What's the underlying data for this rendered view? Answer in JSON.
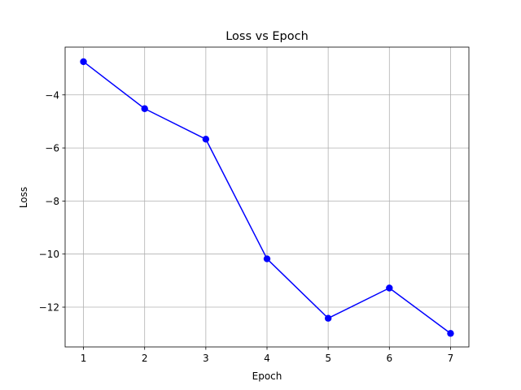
{
  "chart_data": {
    "type": "line",
    "title": "Loss vs Epoch",
    "xlabel": "Epoch",
    "ylabel": "Loss",
    "xlim": [
      0.7,
      7.3
    ],
    "ylim": [
      -13.5,
      -2.2
    ],
    "x_ticks": [
      1,
      2,
      3,
      4,
      5,
      6,
      7
    ],
    "y_ticks": [
      -12,
      -10,
      -8,
      -6,
      -4
    ],
    "grid": true,
    "series": [
      {
        "x": [
          1,
          2,
          3,
          4,
          5,
          6,
          7
        ],
        "values": [
          -2.75,
          -4.52,
          -5.67,
          -10.18,
          -12.42,
          -11.28,
          -12.99
        ],
        "color": "#0000ff",
        "marker": "circle"
      }
    ]
  }
}
